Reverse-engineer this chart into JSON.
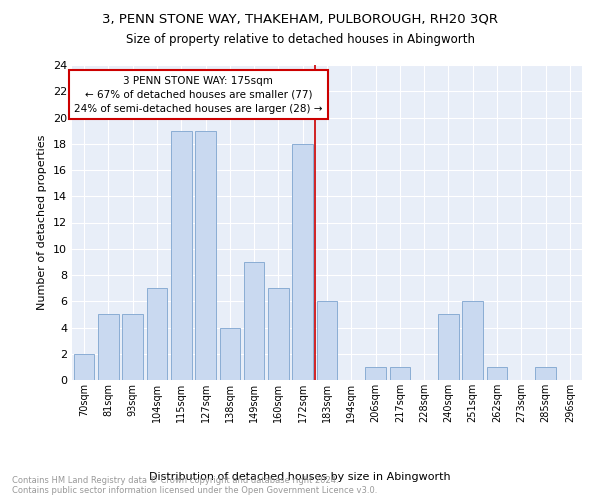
{
  "title": "3, PENN STONE WAY, THAKEHAM, PULBOROUGH, RH20 3QR",
  "subtitle": "Size of property relative to detached houses in Abingworth",
  "xlabel": "Distribution of detached houses by size in Abingworth",
  "ylabel": "Number of detached properties",
  "bins": [
    "70sqm",
    "81sqm",
    "93sqm",
    "104sqm",
    "115sqm",
    "127sqm",
    "138sqm",
    "149sqm",
    "160sqm",
    "172sqm",
    "183sqm",
    "194sqm",
    "206sqm",
    "217sqm",
    "228sqm",
    "240sqm",
    "251sqm",
    "262sqm",
    "273sqm",
    "285sqm",
    "296sqm"
  ],
  "values": [
    2,
    5,
    5,
    7,
    19,
    19,
    4,
    9,
    7,
    18,
    6,
    0,
    1,
    1,
    0,
    5,
    6,
    1,
    0,
    1,
    0
  ],
  "bar_color": "#c9d9f0",
  "bar_edge_color": "#8aadd4",
  "annotation_text": "3 PENN STONE WAY: 175sqm\n← 67% of detached houses are smaller (77)\n24% of semi-detached houses are larger (28) →",
  "vline_x_index": 9.5,
  "vline_color": "#cc0000",
  "annotation_box_edge": "#cc0000",
  "ymax": 24,
  "yticks": [
    0,
    2,
    4,
    6,
    8,
    10,
    12,
    14,
    16,
    18,
    20,
    22,
    24
  ],
  "footer1": "Contains HM Land Registry data © Crown copyright and database right 2024.",
  "footer2": "Contains public sector information licensed under the Open Government Licence v3.0.",
  "bg_color": "#e8eef8",
  "grid_color": "#ffffff"
}
